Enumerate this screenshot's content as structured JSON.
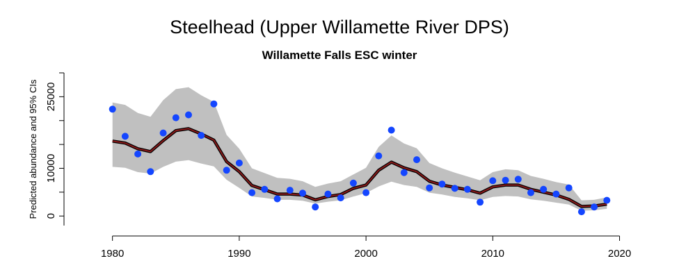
{
  "chart_data": {
    "type": "line",
    "title": "Steelhead (Upper Willamette River DPS)",
    "subtitle": "Willamette Falls ESC winter",
    "xlabel": "",
    "ylabel": "Predicted abundance and 95% CIs",
    "xlim": [
      1977,
      2022
    ],
    "ylim": [
      -2000,
      30000
    ],
    "x_ticks": [
      1980,
      1990,
      2000,
      2010,
      2020
    ],
    "y_ticks": [
      0,
      10000,
      25000
    ],
    "grid": false,
    "colors": {
      "ci_band": "#c0c0c0",
      "line_outer": "#000000",
      "line_inner": "#8b1a1a",
      "points": "#1446ff"
    },
    "series": [
      {
        "type": "band",
        "x": [
          1980,
          1981,
          1982,
          1983,
          1984,
          1985,
          1986,
          1987,
          1988,
          1989,
          1990,
          1991,
          1992,
          1993,
          1994,
          1995,
          1996,
          1997,
          1998,
          1999,
          2000,
          2001,
          2002,
          2003,
          2004,
          2005,
          2006,
          2007,
          2008,
          2009,
          2010,
          2011,
          2012,
          2013,
          2014,
          2015,
          2016,
          2017,
          2018,
          2019
        ],
        "lower": [
          10300,
          10100,
          9200,
          8900,
          10300,
          11400,
          11700,
          11000,
          10400,
          7600,
          5900,
          4100,
          3800,
          3400,
          3400,
          3200,
          2600,
          3000,
          3300,
          4100,
          4800,
          6200,
          7200,
          6500,
          6100,
          4900,
          4500,
          4000,
          3700,
          3300,
          4000,
          4200,
          4100,
          3500,
          3200,
          2800,
          2400,
          1100,
          1200,
          1500
        ],
        "upper": [
          23800,
          23300,
          21600,
          20800,
          24300,
          26600,
          27000,
          25300,
          23900,
          17000,
          14100,
          10000,
          9000,
          8000,
          7800,
          7300,
          6100,
          6800,
          7300,
          8700,
          10100,
          14500,
          16900,
          15200,
          14200,
          11100,
          10000,
          9100,
          8300,
          7500,
          9200,
          9800,
          9600,
          8400,
          7800,
          7100,
          6600,
          3300,
          3400,
          3900
        ]
      },
      {
        "type": "line",
        "x": [
          1980,
          1981,
          1982,
          1983,
          1984,
          1985,
          1986,
          1987,
          1988,
          1989,
          1990,
          1991,
          1992,
          1993,
          1994,
          1995,
          1996,
          1997,
          1998,
          1999,
          2000,
          2001,
          2002,
          2003,
          2004,
          2005,
          2006,
          2007,
          2008,
          2009,
          2010,
          2011,
          2012,
          2013,
          2014,
          2015,
          2016,
          2017,
          2018,
          2019
        ],
        "y": [
          15700,
          15300,
          14100,
          13500,
          15800,
          17900,
          18300,
          17200,
          15900,
          11400,
          9300,
          6400,
          5500,
          4600,
          4600,
          4400,
          3400,
          4100,
          4500,
          5800,
          6500,
          9600,
          11300,
          10100,
          9300,
          7300,
          6500,
          6000,
          5500,
          4800,
          6100,
          6500,
          6500,
          5600,
          5000,
          4400,
          3500,
          2000,
          2100,
          2500
        ]
      },
      {
        "type": "scatter",
        "x": [
          1980,
          1981,
          1982,
          1983,
          1984,
          1985,
          1986,
          1987,
          1988,
          1989,
          1990,
          1991,
          1992,
          1993,
          1994,
          1995,
          1996,
          1997,
          1998,
          1999,
          2000,
          2001,
          2002,
          2003,
          2004,
          2005,
          2006,
          2007,
          2008,
          2009,
          2010,
          2011,
          2012,
          2013,
          2014,
          2015,
          2016,
          2017,
          2018,
          2019
        ],
        "y": [
          22400,
          16700,
          13000,
          9300,
          17400,
          20600,
          21200,
          16900,
          23500,
          9600,
          11100,
          4900,
          5600,
          3600,
          5400,
          4800,
          1900,
          4600,
          3800,
          6900,
          4900,
          12600,
          18000,
          9100,
          11800,
          5900,
          6700,
          5800,
          5600,
          2900,
          7400,
          7500,
          7700,
          4900,
          5600,
          4600,
          5900,
          900,
          1900,
          3300
        ]
      }
    ]
  }
}
